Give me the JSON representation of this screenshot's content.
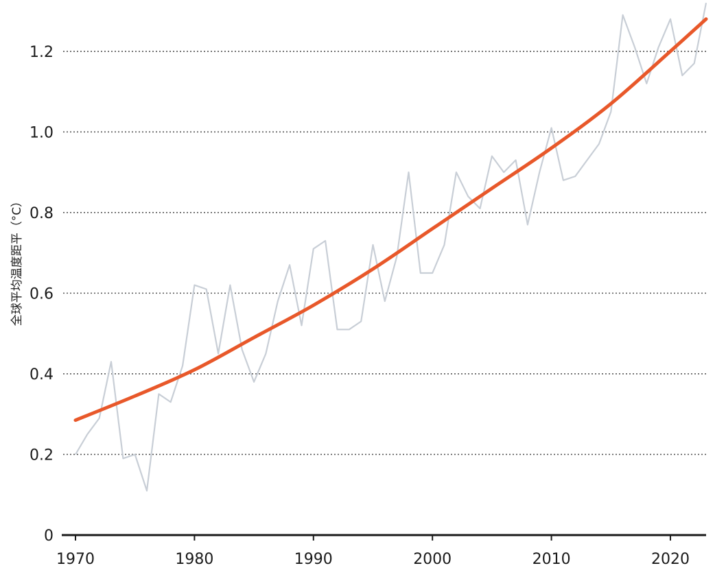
{
  "chart_data": {
    "type": "line",
    "title": "",
    "xlabel": "",
    "ylabel": "全球平均温度距平（°C）",
    "xlim": [
      1970,
      2023
    ],
    "ylim": [
      0,
      1.3
    ],
    "grid": "horizontal dotted",
    "x_ticks": [
      1970,
      1980,
      1990,
      2000,
      2010,
      2020
    ],
    "x_tick_labels": [
      "1970",
      "1980",
      "1990",
      "2000",
      "2010",
      "2020"
    ],
    "y_ticks": [
      0,
      0.2,
      0.4,
      0.6,
      0.8,
      1.0,
      1.2
    ],
    "y_tick_labels": [
      "0",
      "0.2",
      "0.4",
      "0.6",
      "0.8",
      "1.0",
      "1.2"
    ],
    "series": [
      {
        "style": "annual",
        "color": "#c8ced6",
        "x": [
          1970,
          1971,
          1972,
          1973,
          1974,
          1975,
          1976,
          1977,
          1978,
          1979,
          1980,
          1981,
          1982,
          1983,
          1984,
          1985,
          1986,
          1987,
          1988,
          1989,
          1990,
          1991,
          1992,
          1993,
          1994,
          1995,
          1996,
          1997,
          1998,
          1999,
          2000,
          2001,
          2002,
          2003,
          2004,
          2005,
          2006,
          2007,
          2008,
          2009,
          2010,
          2011,
          2012,
          2013,
          2014,
          2015,
          2016,
          2017,
          2018,
          2019,
          2020,
          2021,
          2022,
          2023
        ],
        "values": [
          0.2,
          0.25,
          0.29,
          0.43,
          0.19,
          0.2,
          0.11,
          0.35,
          0.33,
          0.42,
          0.62,
          0.61,
          0.45,
          0.62,
          0.46,
          0.38,
          0.45,
          0.58,
          0.67,
          0.52,
          0.71,
          0.73,
          0.51,
          0.51,
          0.53,
          0.72,
          0.58,
          0.69,
          0.9,
          0.65,
          0.65,
          0.72,
          0.9,
          0.84,
          0.81,
          0.94,
          0.9,
          0.93,
          0.77,
          0.9,
          1.01,
          0.88,
          0.89,
          0.93,
          0.97,
          1.05,
          1.29,
          1.21,
          1.12,
          1.21,
          1.28,
          1.14,
          1.17,
          1.32
        ]
      },
      {
        "style": "trend",
        "color": "#e8582a",
        "x": [
          1970,
          1975,
          1980,
          1985,
          1990,
          1995,
          2000,
          2005,
          2010,
          2015,
          2020,
          2023
        ],
        "values": [
          0.285,
          0.345,
          0.41,
          0.49,
          0.57,
          0.66,
          0.76,
          0.86,
          0.96,
          1.07,
          1.2,
          1.28
        ]
      }
    ],
    "axis_color": "#1a1a1a",
    "grid_color": "#555555"
  }
}
